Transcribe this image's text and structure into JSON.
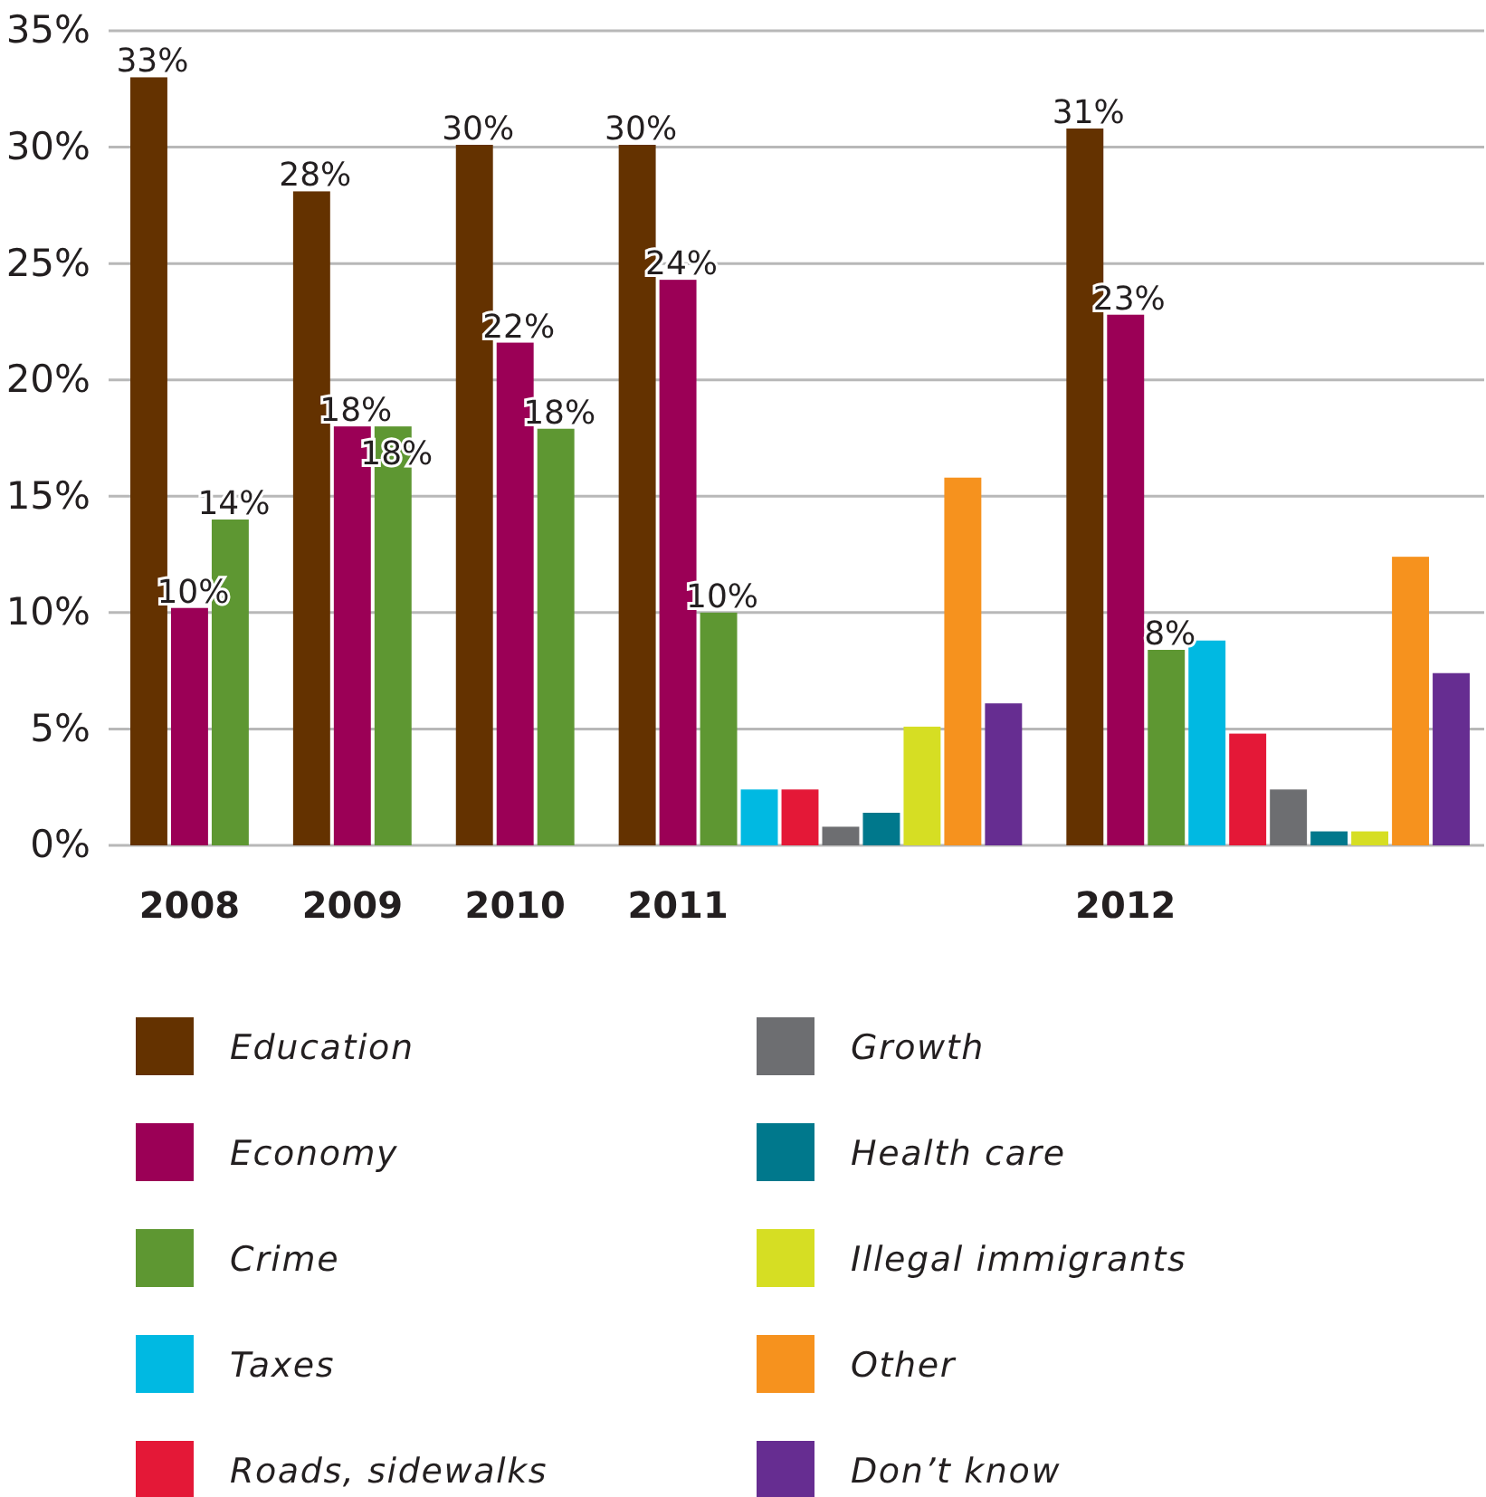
{
  "chart_data": {
    "type": "bar",
    "stacked": true,
    "categories": [
      null,
      "2008",
      null,
      null,
      null,
      "2009",
      null,
      null,
      null,
      "2010",
      null,
      null,
      null,
      "2011",
      null,
      null,
      null,
      null,
      null,
      null,
      null,
      null,
      null,
      null,
      "2012",
      null,
      null,
      null,
      null,
      null,
      null,
      null,
      null
    ],
    "series": [
      {
        "name": "Education",
        "color": "#643200",
        "values": [
          33,
          null,
          null,
          null,
          28.1,
          null,
          null,
          null,
          30.1,
          null,
          null,
          null,
          30.1,
          null,
          null,
          null,
          null,
          null,
          null,
          null,
          null,
          null,
          null,
          30.8,
          null,
          null,
          null,
          null,
          null,
          null,
          null,
          null,
          null
        ],
        "value_labels": [
          "33%",
          null,
          null,
          null,
          "28%",
          null,
          null,
          null,
          "30%",
          null,
          null,
          null,
          "30%",
          null,
          null,
          null,
          null,
          null,
          null,
          null,
          null,
          null,
          null,
          "31%",
          null,
          null,
          null,
          null,
          null,
          null,
          null,
          null,
          null
        ]
      },
      {
        "name": "Economy",
        "color": "#9b0056",
        "values": [
          null,
          10.2,
          null,
          null,
          null,
          18,
          null,
          null,
          null,
          21.6,
          null,
          null,
          null,
          24.3,
          null,
          null,
          null,
          null,
          null,
          null,
          null,
          null,
          null,
          null,
          22.8,
          null,
          null,
          null,
          null,
          null,
          null,
          null,
          null
        ],
        "value_labels": [
          null,
          "10%",
          null,
          null,
          null,
          "18%",
          null,
          null,
          null,
          "22%",
          null,
          null,
          null,
          "24%",
          null,
          null,
          null,
          null,
          null,
          null,
          null,
          null,
          null,
          null,
          "23%",
          null,
          null,
          null,
          null,
          null,
          null,
          null,
          null
        ]
      },
      {
        "name": "Crime",
        "color": "#5e9732",
        "values": [
          null,
          null,
          14,
          null,
          null,
          null,
          18,
          null,
          null,
          null,
          17.9,
          null,
          null,
          null,
          10,
          null,
          null,
          null,
          null,
          null,
          null,
          null,
          null,
          null,
          null,
          8.4,
          null,
          null,
          null,
          null,
          null,
          null,
          null
        ],
        "value_labels": [
          null,
          null,
          "14%",
          null,
          null,
          null,
          "18%",
          null,
          null,
          null,
          "18%",
          null,
          null,
          null,
          "10%",
          null,
          null,
          null,
          null,
          null,
          null,
          null,
          null,
          null,
          null,
          "8%",
          null,
          null,
          null,
          null,
          null,
          null,
          null
        ]
      },
      {
        "name": "Taxes",
        "color": "#00b9e2",
        "values": [
          null,
          null,
          null,
          null,
          null,
          null,
          null,
          null,
          null,
          null,
          null,
          null,
          null,
          null,
          null,
          2.4,
          null,
          null,
          null,
          null,
          null,
          null,
          null,
          null,
          null,
          null,
          8.8,
          null,
          null,
          null,
          null,
          null,
          null
        ]
      },
      {
        "name": "Roads, sidewalks",
        "color": "#e41837",
        "values": [
          null,
          null,
          null,
          null,
          null,
          null,
          null,
          null,
          null,
          null,
          null,
          null,
          null,
          null,
          null,
          null,
          2.4,
          null,
          null,
          null,
          null,
          null,
          null,
          null,
          null,
          null,
          null,
          4.8,
          null,
          null,
          null,
          null,
          null
        ]
      },
      {
        "name": "Growth",
        "color": "#6d6e71",
        "values": [
          null,
          null,
          null,
          null,
          null,
          null,
          null,
          null,
          null,
          null,
          null,
          null,
          null,
          null,
          null,
          null,
          null,
          0.8,
          null,
          null,
          null,
          null,
          null,
          null,
          null,
          null,
          null,
          null,
          2.4,
          null,
          null,
          null,
          null
        ]
      },
      {
        "name": "Health care",
        "color": "#00788c",
        "values": [
          null,
          null,
          null,
          null,
          null,
          null,
          null,
          null,
          null,
          null,
          null,
          null,
          null,
          null,
          null,
          null,
          null,
          null,
          1.4,
          null,
          null,
          null,
          null,
          null,
          null,
          null,
          null,
          null,
          null,
          0.6,
          null,
          null,
          null
        ]
      },
      {
        "name": "Illegal immigrants",
        "color": "#d6de23",
        "values": [
          null,
          null,
          null,
          null,
          null,
          null,
          null,
          null,
          null,
          null,
          null,
          null,
          null,
          null,
          null,
          null,
          null,
          null,
          null,
          5.1,
          null,
          null,
          null,
          null,
          null,
          null,
          null,
          null,
          null,
          null,
          0.6,
          null,
          null
        ]
      },
      {
        "name": "Other",
        "color": "#f6921e",
        "values": [
          null,
          null,
          null,
          null,
          null,
          null,
          null,
          null,
          null,
          null,
          null,
          null,
          null,
          null,
          null,
          null,
          null,
          null,
          null,
          null,
          15.8,
          null,
          null,
          null,
          null,
          null,
          null,
          null,
          null,
          null,
          null,
          12.4,
          null
        ]
      },
      {
        "name": "Don’t know",
        "color": "#662d91",
        "values": [
          null,
          null,
          null,
          null,
          null,
          null,
          null,
          null,
          null,
          null,
          null,
          null,
          null,
          null,
          null,
          null,
          null,
          null,
          null,
          null,
          null,
          6.1,
          null,
          null,
          null,
          null,
          null,
          null,
          null,
          null,
          null,
          null,
          7.4
        ]
      }
    ],
    "ylim": [
      0,
      35
    ],
    "yticks": [
      {
        "value": 0,
        "label": "0%"
      },
      {
        "value": 5,
        "label": "5%"
      },
      {
        "value": 10,
        "label": "10%"
      },
      {
        "value": 15,
        "label": "15%"
      },
      {
        "value": 20,
        "label": "20%"
      },
      {
        "value": 25,
        "label": "25%"
      },
      {
        "value": 30,
        "label": "30%"
      },
      {
        "value": 35,
        "label": "35%"
      }
    ],
    "grid": "y",
    "legend": "bottom"
  }
}
